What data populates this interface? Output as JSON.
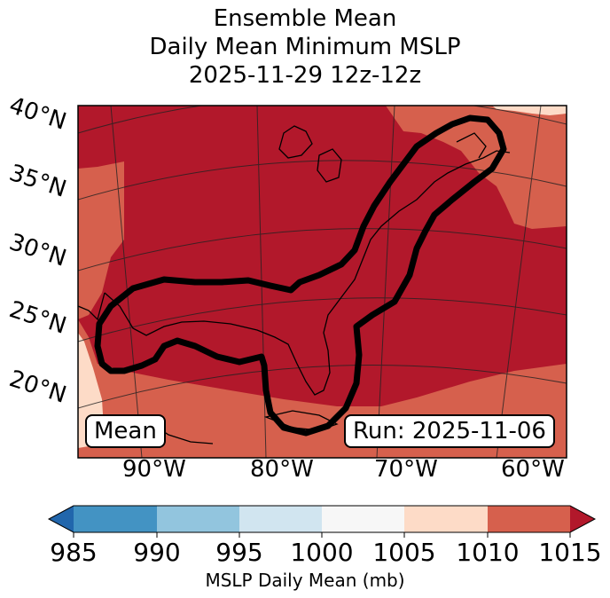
{
  "title": {
    "line1": "Ensemble Mean",
    "line2": "Daily Mean Minimum MSLP",
    "line3": "2025-11-29 12z-12z"
  },
  "map": {
    "lat_labels": [
      "40°N",
      "35°N",
      "30°N",
      "25°N",
      "20°N"
    ],
    "lon_labels": [
      "90°W",
      "80°W",
      "70°W",
      "60°W"
    ],
    "left_box": "Mean",
    "right_box": "Run: 2025-11-06",
    "contour_color": "#000000"
  },
  "colorbar": {
    "ticks": [
      "985",
      "990",
      "995",
      "1000",
      "1005",
      "1010",
      "1015"
    ],
    "label": "MSLP Daily Mean (mb)",
    "colors": [
      "#2166ac",
      "#4393c3",
      "#92c5de",
      "#d1e5f0",
      "#f7f7f7",
      "#fddbc7",
      "#d6604d",
      "#b2182b"
    ]
  }
}
